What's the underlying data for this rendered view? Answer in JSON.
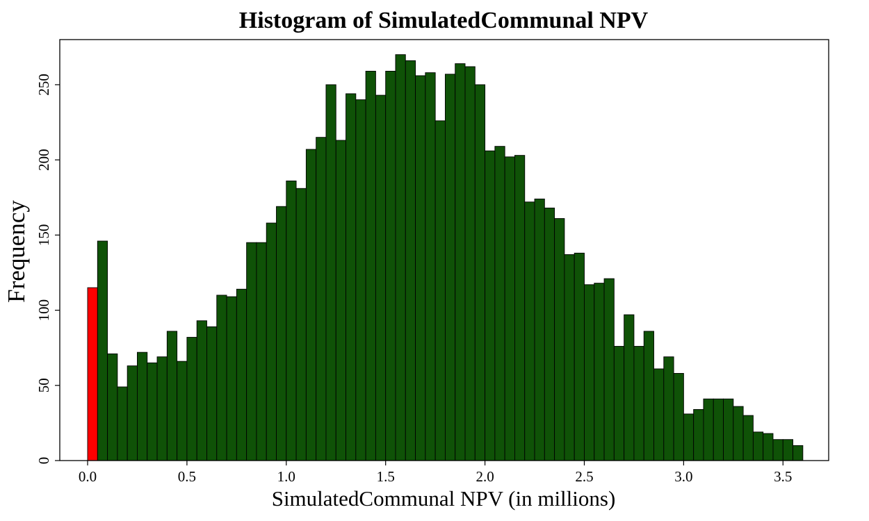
{
  "chart_data": {
    "type": "bar",
    "title": "Histogram of SimulatedCommunal NPV",
    "xlabel": "SimulatedCommunal NPV (in millions)",
    "ylabel": "Frequency",
    "xlim": [
      -0.14,
      3.73
    ],
    "ylim": [
      0,
      280
    ],
    "xticks": [
      "0.0",
      "0.5",
      "1.0",
      "1.5",
      "2.0",
      "2.5",
      "3.0",
      "3.5"
    ],
    "yticks": [
      "0",
      "50",
      "100",
      "150",
      "200",
      "250"
    ],
    "bin_width": 0.05,
    "bins": [
      0.0,
      0.05,
      0.1,
      0.15,
      0.2,
      0.25,
      0.3,
      0.35,
      0.4,
      0.45,
      0.5,
      0.55,
      0.6,
      0.65,
      0.7,
      0.75,
      0.8,
      0.85,
      0.9,
      0.95,
      1.0,
      1.05,
      1.1,
      1.15,
      1.2,
      1.25,
      1.3,
      1.35,
      1.4,
      1.45,
      1.5,
      1.55,
      1.6,
      1.65,
      1.7,
      1.75,
      1.8,
      1.85,
      1.9,
      1.95,
      2.0,
      2.05,
      2.1,
      2.15,
      2.2,
      2.25,
      2.3,
      2.35,
      2.4,
      2.45,
      2.5,
      2.55,
      2.6,
      2.65,
      2.7,
      2.75,
      2.8,
      2.85,
      2.9,
      2.95,
      3.0,
      3.05,
      3.1,
      3.15,
      3.2,
      3.25,
      3.3,
      3.35,
      3.4,
      3.45,
      3.5,
      3.55
    ],
    "values": [
      115,
      146,
      71,
      49,
      63,
      72,
      65,
      69,
      86,
      66,
      82,
      93,
      89,
      110,
      109,
      114,
      145,
      145,
      158,
      169,
      186,
      181,
      207,
      215,
      250,
      213,
      244,
      240,
      259,
      243,
      259,
      270,
      266,
      256,
      258,
      226,
      257,
      264,
      262,
      250,
      206,
      209,
      202,
      203,
      172,
      174,
      168,
      161,
      137,
      138,
      117,
      118,
      121,
      76,
      97,
      76,
      86,
      61,
      69,
      58,
      31,
      34,
      41,
      41,
      41,
      36,
      30,
      19,
      18,
      14,
      14,
      10
    ],
    "highlight_color": "#ff0000",
    "bar_color": "#0f5207",
    "grid": false
  }
}
